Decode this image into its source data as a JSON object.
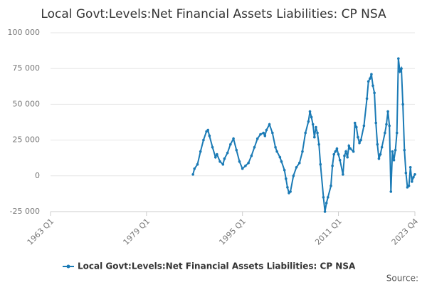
{
  "chart_data": {
    "type": "line",
    "title": "Local Govt:Levels:Net Financial Assets Liabilities: CP NSA",
    "source": "Source:",
    "x": [
      1986.75,
      1987,
      1987.5,
      1988,
      1988.5,
      1989,
      1989.25,
      1989.5,
      1990,
      1990.5,
      1990.75,
      1991.25,
      1991.75,
      1992,
      1992.5,
      1993,
      1993.5,
      1994,
      1994.5,
      1995,
      1995.5,
      1996,
      1996.5,
      1997,
      1997.5,
      1998,
      1998.5,
      1998.75,
      1999,
      1999.5,
      2000,
      2000.5,
      2000.75,
      2001.25,
      2001.5,
      2002,
      2002.25,
      2002.5,
      2002.75,
      2003,
      2003.5,
      2004,
      2004.5,
      2005,
      2005.5,
      2006,
      2006.25,
      2006.5,
      2006.75,
      2007,
      2007.25,
      2007.5,
      2007.75,
      2008,
      2008.5,
      2008.75,
      2009,
      2009.25,
      2009.75,
      2010,
      2010.25,
      2010.5,
      2010.75,
      2011,
      2011.25,
      2011.75,
      2012,
      2012.25,
      2012.5,
      2012.75,
      2013,
      2013.5,
      2013.75,
      2014,
      2014.25,
      2014.5,
      2014.75,
      2015.25,
      2015.75,
      2016,
      2016.25,
      2016.5,
      2016.75,
      2017,
      2017.25,
      2017.5,
      2017.75,
      2018,
      2018.25,
      2018.75,
      2019,
      2019.25,
      2019.5,
      2019.75,
      2020,
      2020.25,
      2020.5,
      2020.75,
      2021,
      2021.25,
      2021.5,
      2021.75,
      2022,
      2022.25,
      2022.5,
      2022.75,
      2023,
      2023.25,
      2023.5,
      2023.75
    ],
    "series": [
      {
        "name": "Local Govt:Levels:Net Financial Assets Liabilities: CP NSA",
        "color": "#1a7ab5",
        "values": [
          1000,
          5000,
          8000,
          17000,
          25000,
          31000,
          32000,
          28000,
          20000,
          13000,
          15000,
          10000,
          8000,
          12000,
          16000,
          22000,
          26000,
          18000,
          10000,
          5000,
          7000,
          9000,
          14000,
          20000,
          26000,
          29000,
          30000,
          28000,
          32000,
          36000,
          30000,
          20000,
          17000,
          13000,
          10000,
          4000,
          -2000,
          -8000,
          -12000,
          -11000,
          0,
          6000,
          9000,
          17000,
          30000,
          38000,
          45000,
          41000,
          36000,
          27000,
          34000,
          30000,
          22000,
          8000,
          -15000,
          -25000,
          -19000,
          -15000,
          -7000,
          7000,
          15000,
          17000,
          19000,
          15000,
          11000,
          1000,
          14000,
          17000,
          13000,
          21000,
          19000,
          17000,
          37000,
          34000,
          27000,
          23000,
          25000,
          35000,
          54000,
          66000,
          68000,
          71000,
          63000,
          58000,
          37000,
          22000,
          12000,
          15000,
          20000,
          30000,
          36000,
          45000,
          35000,
          -11000,
          17000,
          11000,
          18000,
          30000,
          82000,
          73000,
          75000,
          50000,
          18000,
          2000,
          -8000,
          -7000,
          6000,
          -4000,
          -1000,
          1000
        ]
      }
    ],
    "xlim": [
      1963,
      2023.75
    ],
    "xticks": [
      {
        "value": 1963,
        "label": "1963 Q1"
      },
      {
        "value": 1979,
        "label": "1979 Q1"
      },
      {
        "value": 1995,
        "label": "1995 Q1"
      },
      {
        "value": 2011,
        "label": "2011 Q1"
      },
      {
        "value": 2023.75,
        "label": "2023 Q4"
      }
    ],
    "ylim": [
      -25000,
      100000
    ],
    "yticks": [
      {
        "value": -25000,
        "label": "-25 000"
      },
      0,
      {
        "value": 25000,
        "label": "25 000"
      },
      {
        "value": 50000,
        "label": "50 000"
      },
      {
        "value": 75000,
        "label": "75 000"
      },
      {
        "value": 100000,
        "label": "100 000"
      }
    ],
    "grid": true
  }
}
